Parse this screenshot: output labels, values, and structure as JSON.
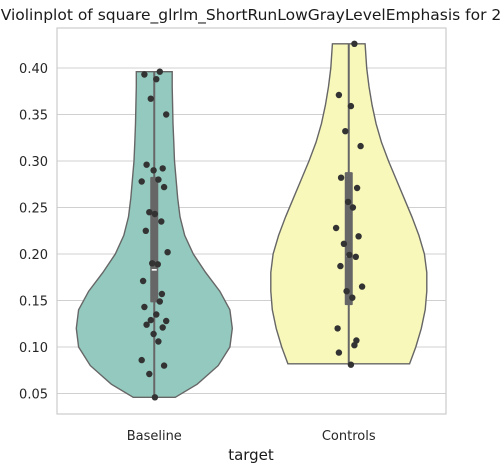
{
  "chart_data": {
    "type": "violin",
    "title": "Violinplot of square_glrlm_ShortRunLowGrayLevelEmphasis for 2",
    "xlabel": "target",
    "ylabel": "",
    "categories": [
      "Baseline",
      "Controls"
    ],
    "ylim": [
      0.028,
      0.443
    ],
    "yticks": [
      0.05,
      0.1,
      0.15,
      0.2,
      0.25,
      0.3,
      0.35,
      0.4
    ],
    "ytick_labels": [
      "0.05",
      "0.10",
      "0.15",
      "0.20",
      "0.25",
      "0.30",
      "0.35",
      "0.40"
    ],
    "grid": "horizontal",
    "colors": {
      "Baseline": "#93c9be",
      "Controls": "#f8f8bb",
      "outline": "#666666",
      "points": "#333333",
      "grid": "#d0d0d0"
    },
    "series": [
      {
        "category": "Baseline",
        "violin": {
          "min": 0.046,
          "max": 0.396,
          "density": [
            [
              0.046,
              0.27
            ],
            [
              0.06,
              0.55
            ],
            [
              0.08,
              0.82
            ],
            [
              0.1,
              0.97
            ],
            [
              0.12,
              1.0
            ],
            [
              0.14,
              0.97
            ],
            [
              0.16,
              0.84
            ],
            [
              0.18,
              0.66
            ],
            [
              0.2,
              0.5
            ],
            [
              0.22,
              0.39
            ],
            [
              0.24,
              0.33
            ],
            [
              0.26,
              0.3
            ],
            [
              0.28,
              0.28
            ],
            [
              0.3,
              0.26
            ],
            [
              0.32,
              0.25
            ],
            [
              0.34,
              0.24
            ],
            [
              0.36,
              0.235
            ],
            [
              0.38,
              0.23
            ],
            [
              0.396,
              0.23
            ]
          ]
        },
        "box": {
          "q1": 0.148,
          "median": 0.183,
          "q3": 0.283,
          "whisker_low": 0.046,
          "whisker_high": 0.396
        },
        "points": [
          0.396,
          0.393,
          0.388,
          0.367,
          0.35,
          0.296,
          0.292,
          0.29,
          0.28,
          0.278,
          0.272,
          0.245,
          0.243,
          0.235,
          0.225,
          0.202,
          0.19,
          0.189,
          0.171,
          0.157,
          0.149,
          0.143,
          0.135,
          0.129,
          0.128,
          0.124,
          0.121,
          0.114,
          0.106,
          0.086,
          0.08,
          0.071,
          0.046
        ]
      },
      {
        "category": "Controls",
        "violin": {
          "min": 0.082,
          "max": 0.426,
          "density": [
            [
              0.082,
              0.78
            ],
            [
              0.1,
              0.86
            ],
            [
              0.12,
              0.93
            ],
            [
              0.14,
              0.98
            ],
            [
              0.16,
              1.0
            ],
            [
              0.18,
              1.0
            ],
            [
              0.2,
              0.97
            ],
            [
              0.22,
              0.9
            ],
            [
              0.24,
              0.81
            ],
            [
              0.26,
              0.71
            ],
            [
              0.28,
              0.61
            ],
            [
              0.3,
              0.51
            ],
            [
              0.32,
              0.42
            ],
            [
              0.34,
              0.35
            ],
            [
              0.36,
              0.3
            ],
            [
              0.38,
              0.26
            ],
            [
              0.4,
              0.23
            ],
            [
              0.426,
              0.21
            ]
          ]
        },
        "box": {
          "q1": 0.145,
          "median": 0.198,
          "q3": 0.288,
          "whisker_low": 0.082,
          "whisker_high": 0.426
        },
        "points": [
          0.426,
          0.371,
          0.359,
          0.332,
          0.316,
          0.282,
          0.271,
          0.256,
          0.25,
          0.228,
          0.219,
          0.211,
          0.199,
          0.197,
          0.187,
          0.165,
          0.16,
          0.153,
          0.12,
          0.107,
          0.102,
          0.094,
          0.081
        ]
      }
    ]
  }
}
